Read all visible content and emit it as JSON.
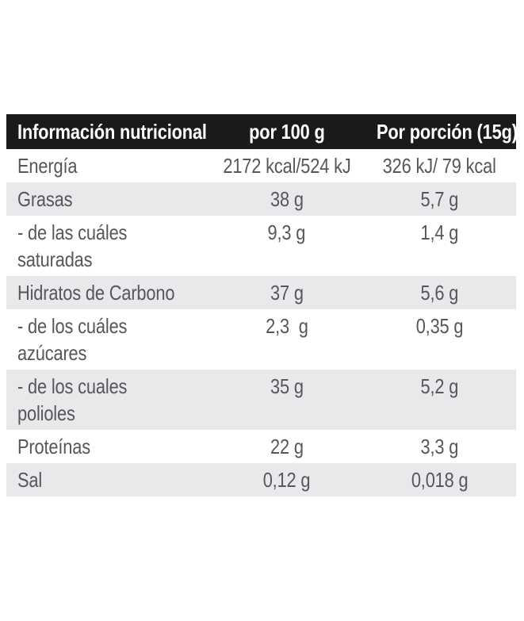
{
  "table": {
    "header": {
      "col1": "Información nutricional",
      "col2": "por 100 g",
      "col3": "Por porción (15g)"
    },
    "rows": [
      {
        "label": "Energía",
        "per100g": "2172 kcal/524 kJ",
        "per_portion": "326 kJ/ 79 kcal",
        "shaded": false
      },
      {
        "label": "Grasas",
        "per100g": "38 g",
        "per_portion": "5,7 g",
        "shaded": true
      },
      {
        "label": "- de las cuáles\nsaturadas",
        "per100g": "9,3 g",
        "per_portion": "1,4 g",
        "shaded": false
      },
      {
        "label": "Hidratos de Carbono",
        "per100g": "37 g",
        "per_portion": "5,6 g",
        "shaded": true
      },
      {
        "label": "- de los cuáles\nazúcares",
        "per100g": "2,3  g",
        "per_portion": "0,35 g",
        "shaded": false
      },
      {
        "label": "- de los cuales\npolioles",
        "per100g": "35 g",
        "per_portion": "5,2 g",
        "shaded": true
      },
      {
        "label": "Proteínas",
        "per100g": "22 g",
        "per_portion": "3,3 g",
        "shaded": false
      },
      {
        "label": "Sal",
        "per100g": "0,12 g",
        "per_portion": "0,018 g",
        "shaded": true
      }
    ]
  },
  "colors": {
    "header_bg": "#1a1a1a",
    "header_text": "#ffffff",
    "shaded_row_bg": "#e8e9ea",
    "body_text": "#55575a",
    "page_bg": "#ffffff"
  }
}
